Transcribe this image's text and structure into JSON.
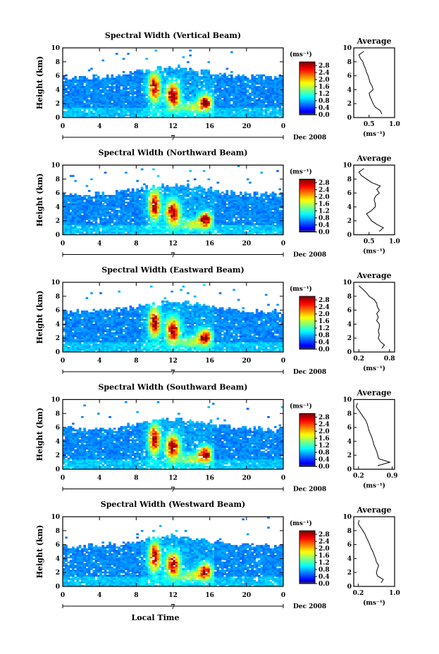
{
  "figure": {
    "x_axis_label": "Local Time",
    "date_label": "Dec 2008",
    "day_label": "7",
    "colorbar_unit": "(ms⁻¹)",
    "average_unit": "(ms⁻¹)"
  },
  "chart_data": [
    {
      "type": "heatmap",
      "title": "Spectral Width (Vertical Beam)",
      "ylabel": "Height (km)",
      "xlabel": "Local Time",
      "x_ticks": [
        "0",
        "4",
        "8",
        "12",
        "16",
        "20",
        "0"
      ],
      "y_ticks": [
        "0",
        "2",
        "4",
        "6",
        "8",
        "10"
      ],
      "xlim": [
        0,
        24
      ],
      "ylim": [
        0,
        10
      ],
      "colorbar": {
        "ticks": [
          "0.0",
          "0.4",
          "0.8",
          "1.2",
          "1.6",
          "2.0",
          "2.4",
          "2.8"
        ],
        "range": [
          0,
          3.0
        ]
      },
      "average": {
        "title": "Average",
        "xlim": [
          0.2,
          1.0
        ],
        "x_ticks": [
          "0.5",
          "1.0"
        ],
        "heights": [
          0.5,
          1,
          1.5,
          2,
          2.5,
          3,
          3.5,
          4,
          4.5,
          5,
          5.5,
          6,
          6.5,
          7,
          7.5,
          8,
          8.5,
          9,
          9.5
        ],
        "values": [
          0.75,
          0.72,
          0.62,
          0.58,
          0.55,
          0.52,
          0.5,
          0.58,
          0.56,
          0.52,
          0.5,
          0.48,
          0.45,
          0.43,
          0.4,
          0.38,
          0.33,
          0.3,
          0.4
        ]
      }
    },
    {
      "type": "heatmap",
      "title": "Spectral Width (Northward Beam)",
      "ylabel": "Height (km)",
      "xlabel": "Local Time",
      "x_ticks": [
        "0",
        "4",
        "8",
        "12",
        "16",
        "20",
        "0"
      ],
      "y_ticks": [
        "0",
        "2",
        "4",
        "6",
        "8",
        "10"
      ],
      "xlim": [
        0,
        24
      ],
      "ylim": [
        0,
        10
      ],
      "colorbar": {
        "ticks": [
          "0.0",
          "0.4",
          "0.8",
          "1.2",
          "1.6",
          "2.0",
          "2.4",
          "2.8"
        ],
        "range": [
          0,
          3.0
        ]
      },
      "average": {
        "title": "Average",
        "xlim": [
          0.2,
          1.0
        ],
        "x_ticks": [
          "0.5",
          "1.0"
        ],
        "heights": [
          0.5,
          1,
          1.5,
          2,
          2.5,
          3,
          3.5,
          4,
          4.5,
          5,
          5.5,
          6,
          6.5,
          7,
          7.5,
          8,
          8.5,
          9,
          9.5
        ],
        "values": [
          0.7,
          0.78,
          0.65,
          0.55,
          0.5,
          0.45,
          0.55,
          0.62,
          0.62,
          0.6,
          0.62,
          0.7,
          0.65,
          0.72,
          0.55,
          0.45,
          0.35,
          0.3,
          0.4
        ]
      }
    },
    {
      "type": "heatmap",
      "title": "Spectral Width (Eastward Beam)",
      "ylabel": "Height (km)",
      "xlabel": "Local Time",
      "x_ticks": [
        "0",
        "4",
        "8",
        "12",
        "16",
        "20",
        "0"
      ],
      "y_ticks": [
        "0",
        "2",
        "4",
        "6",
        "8",
        "10"
      ],
      "xlim": [
        0,
        24
      ],
      "ylim": [
        0,
        10
      ],
      "colorbar": {
        "ticks": [
          "0.0",
          "0.4",
          "0.8",
          "1.2",
          "1.6",
          "2.0",
          "2.4",
          "2.8"
        ],
        "range": [
          0,
          3.0
        ]
      },
      "average": {
        "title": "Average",
        "xlim": [
          0.1,
          0.9
        ],
        "x_ticks": [
          "0.2",
          "0.8"
        ],
        "heights": [
          0.5,
          1,
          1.5,
          2,
          2.5,
          3,
          3.5,
          4,
          4.5,
          5,
          5.5,
          6,
          6.5,
          7,
          7.5,
          8,
          8.5,
          9,
          9.5
        ],
        "values": [
          0.65,
          0.7,
          0.62,
          0.58,
          0.6,
          0.58,
          0.6,
          0.6,
          0.55,
          0.58,
          0.55,
          0.6,
          0.56,
          0.55,
          0.5,
          0.4,
          0.35,
          0.28,
          0.2
        ]
      }
    },
    {
      "type": "heatmap",
      "title": "Spectral Width (Southward Beam)",
      "ylabel": "Height (km)",
      "xlabel": "Local Time",
      "x_ticks": [
        "0",
        "4",
        "8",
        "12",
        "16",
        "20",
        "0"
      ],
      "y_ticks": [
        "0",
        "2",
        "4",
        "6",
        "8",
        "10"
      ],
      "xlim": [
        0,
        24
      ],
      "ylim": [
        0,
        10
      ],
      "colorbar": {
        "ticks": [
          "0.0",
          "0.4",
          "0.8",
          "1.2",
          "1.6",
          "2.0",
          "2.4",
          "2.8"
        ],
        "range": [
          0,
          3.0
        ]
      },
      "average": {
        "title": "Average",
        "xlim": [
          0.1,
          0.95
        ],
        "x_ticks": [
          "0.2",
          "0.9"
        ],
        "heights": [
          0.5,
          1,
          1.5,
          2,
          2.5,
          3,
          3.5,
          4,
          4.5,
          5,
          5.5,
          6,
          6.5,
          7,
          7.5,
          8,
          8.5,
          9,
          9.5
        ],
        "values": [
          0.6,
          0.85,
          0.62,
          0.6,
          0.58,
          0.55,
          0.52,
          0.5,
          0.48,
          0.45,
          0.42,
          0.4,
          0.38,
          0.35,
          0.3,
          0.25,
          0.2,
          0.15,
          0.18
        ]
      }
    },
    {
      "type": "heatmap",
      "title": "Spectral Width (Westward Beam)",
      "ylabel": "Height (km)",
      "xlabel": "Local Time",
      "x_ticks": [
        "0",
        "4",
        "8",
        "12",
        "16",
        "20",
        "0"
      ],
      "y_ticks": [
        "0",
        "2",
        "4",
        "6",
        "8",
        "10"
      ],
      "xlim": [
        0,
        24
      ],
      "ylim": [
        0,
        10
      ],
      "colorbar": {
        "ticks": [
          "0.0",
          "0.4",
          "0.8",
          "1.2",
          "1.6",
          "2.0",
          "2.4",
          "2.8"
        ],
        "range": [
          0,
          3.0
        ]
      },
      "average": {
        "title": "Average",
        "xlim": [
          0.1,
          1.0
        ],
        "x_ticks": [
          "0.2",
          "1.0"
        ],
        "heights": [
          0.5,
          1,
          1.5,
          2,
          2.5,
          3,
          3.5,
          4,
          4.5,
          5,
          5.5,
          6,
          6.5,
          7,
          7.5,
          8,
          8.5,
          9,
          9.5
        ],
        "values": [
          0.7,
          0.75,
          0.62,
          0.6,
          0.62,
          0.65,
          0.6,
          0.58,
          0.55,
          0.52,
          0.48,
          0.45,
          0.42,
          0.38,
          0.35,
          0.3,
          0.25,
          0.2,
          0.22
        ]
      }
    }
  ]
}
